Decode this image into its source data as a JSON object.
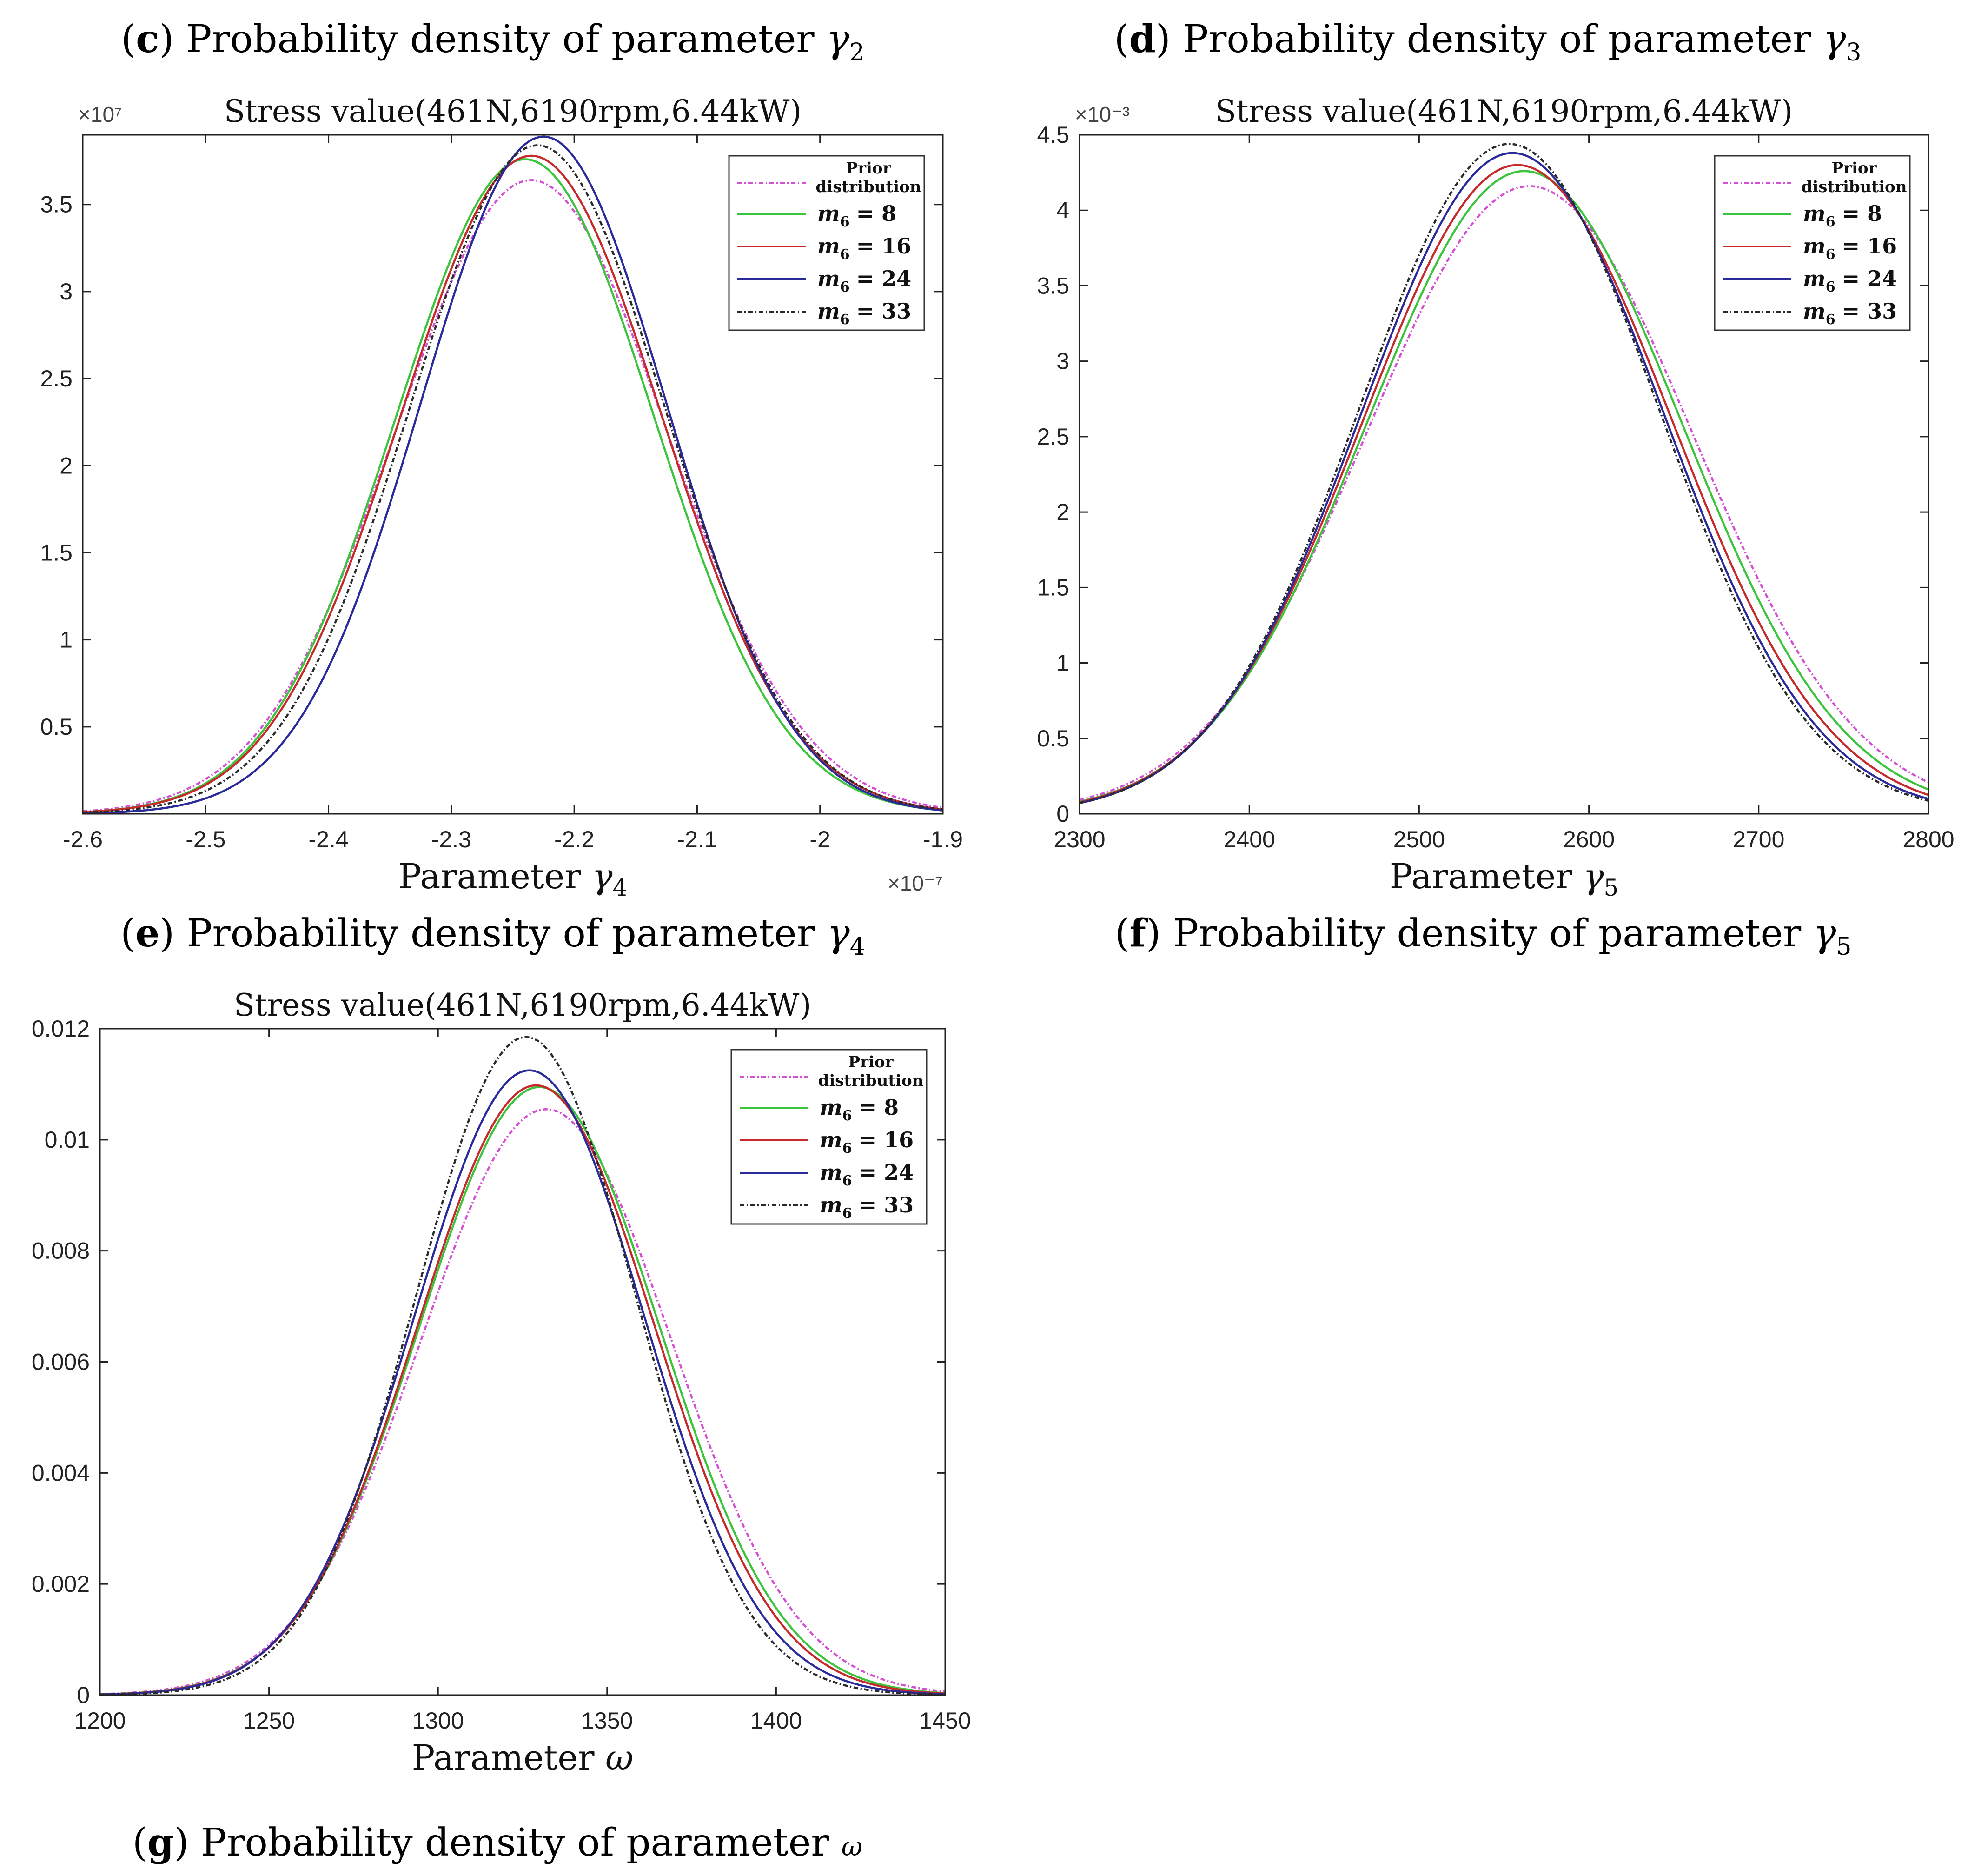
{
  "captions": {
    "c": {
      "letter": "c",
      "text": " Probability density of parameter ",
      "sym": "γ",
      "sub": "2"
    },
    "d": {
      "letter": "d",
      "text": " Probability density of parameter ",
      "sym": "γ",
      "sub": "3"
    },
    "e": {
      "letter": "e",
      "text": " Probability density of parameter ",
      "sym": "γ",
      "sub": "4"
    },
    "f": {
      "letter": "f",
      "text": " Probability density of parameter ",
      "sym": "γ",
      "sub": "5"
    },
    "g": {
      "letter": "g",
      "text": " Probability density of parameter ",
      "sym": "ω",
      "sub": ""
    }
  },
  "legend": {
    "prior_line1": "Prior",
    "prior_line2": "distribution",
    "m_label": "m",
    "m_sub": "6",
    "entries": [
      "= 8",
      "= 16",
      "= 24",
      "= 33"
    ]
  },
  "colors": {
    "prior": "#d44fd4",
    "m8": "#3cc43c",
    "m16": "#c62a2a",
    "m24": "#2a2a9a",
    "m33": "#2a2a2a"
  },
  "chart_data": [
    {
      "id": "e",
      "type": "line",
      "title": "Stress value(461N,6190rpm,6.44kW)",
      "xlabel": "Parameter γ",
      "xlabel_sub": "4",
      "ylabel": "",
      "xlim": [
        -2.6,
        -1.9
      ],
      "ylim": [
        0,
        3.9
      ],
      "xticks": [
        -2.6,
        -2.5,
        -2.4,
        -2.3,
        -2.2,
        -2.1,
        -2.0,
        -1.9
      ],
      "xtick_labels": [
        "-2.6",
        "-2.5",
        "-2.4",
        "-2.3",
        "-2.2",
        "-2.1",
        "-2",
        "-1.9"
      ],
      "yticks": [
        0.5,
        1,
        1.5,
        2,
        2.5,
        3,
        3.5
      ],
      "ytick_labels": [
        "0.5",
        "1",
        "1.5",
        "2",
        "2.5",
        "3",
        "3.5"
      ],
      "x_exponent": "×10⁻⁷",
      "y_exponent": "×10⁷",
      "series": [
        {
          "name": "Prior distribution",
          "peak_x": -2.235,
          "peak_y": 3.64,
          "sigma": 0.11,
          "style": "dashdot",
          "color_key": "prior"
        },
        {
          "name": "m6 = 8",
          "peak_x": -2.24,
          "peak_y": 3.76,
          "sigma": 0.105,
          "style": "solid",
          "color_key": "m8"
        },
        {
          "name": "m6 = 16",
          "peak_x": -2.235,
          "peak_y": 3.78,
          "sigma": 0.106,
          "style": "solid",
          "color_key": "m16"
        },
        {
          "name": "m6 = 24",
          "peak_x": -2.225,
          "peak_y": 3.89,
          "sigma": 0.1,
          "style": "solid",
          "color_key": "m24"
        },
        {
          "name": "m6 = 33",
          "peak_x": -2.23,
          "peak_y": 3.84,
          "sigma": 0.104,
          "style": "dashdot",
          "color_key": "m33"
        }
      ]
    },
    {
      "id": "f",
      "type": "line",
      "title": "Stress value(461N,6190rpm,6.44kW)",
      "xlabel": "Parameter γ",
      "xlabel_sub": "5",
      "ylabel": "",
      "xlim": [
        2300,
        2800
      ],
      "ylim": [
        0,
        4.5
      ],
      "xticks": [
        2300,
        2400,
        2500,
        2600,
        2700,
        2800
      ],
      "xtick_labels": [
        "2300",
        "2400",
        "2500",
        "2600",
        "2700",
        "2800"
      ],
      "yticks": [
        0,
        0.5,
        1,
        1.5,
        2,
        2.5,
        3,
        3.5,
        4,
        4.5
      ],
      "ytick_labels": [
        "0",
        "0.5",
        "1",
        "1.5",
        "2",
        "2.5",
        "3",
        "3.5",
        "4",
        "4.5"
      ],
      "x_exponent": "",
      "y_exponent": "×10⁻³",
      "series": [
        {
          "name": "Prior distribution",
          "peak_x": 2565,
          "peak_y": 4.16,
          "sigma": 96,
          "style": "dashdot",
          "color_key": "prior"
        },
        {
          "name": "m6 = 8",
          "peak_x": 2562,
          "peak_y": 4.26,
          "sigma": 93,
          "style": "solid",
          "color_key": "m8"
        },
        {
          "name": "m6 = 16",
          "peak_x": 2558,
          "peak_y": 4.3,
          "sigma": 91,
          "style": "solid",
          "color_key": "m16"
        },
        {
          "name": "m6 = 24",
          "peak_x": 2555,
          "peak_y": 4.38,
          "sigma": 89,
          "style": "solid",
          "color_key": "m24"
        },
        {
          "name": "m6 = 33",
          "peak_x": 2553,
          "peak_y": 4.44,
          "sigma": 88,
          "style": "dashdot",
          "color_key": "m33"
        }
      ]
    },
    {
      "id": "g",
      "type": "line",
      "title": "Stress value(461N,6190rpm,6.44kW)",
      "xlabel": "Parameter ω",
      "xlabel_sub": "",
      "ylabel": "",
      "xlim": [
        1200,
        1450
      ],
      "ylim": [
        0,
        0.012
      ],
      "xticks": [
        1200,
        1250,
        1300,
        1350,
        1400,
        1450
      ],
      "xtick_labels": [
        "1200",
        "1250",
        "1300",
        "1350",
        "1400",
        "1450"
      ],
      "yticks": [
        0,
        0.002,
        0.004,
        0.006,
        0.008,
        0.01,
        0.012
      ],
      "ytick_labels": [
        "0",
        "0.002",
        "0.004",
        "0.006",
        "0.008",
        "0.01",
        "0.012"
      ],
      "x_exponent": "",
      "y_exponent": "",
      "series": [
        {
          "name": "Prior distribution",
          "peak_x": 1332,
          "peak_y": 0.01055,
          "sigma": 37,
          "style": "dashdot",
          "color_key": "prior"
        },
        {
          "name": "m6 = 8",
          "peak_x": 1330,
          "peak_y": 0.01095,
          "sigma": 35.5,
          "style": "solid",
          "color_key": "m8"
        },
        {
          "name": "m6 = 16",
          "peak_x": 1329,
          "peak_y": 0.01098,
          "sigma": 35,
          "style": "solid",
          "color_key": "m16"
        },
        {
          "name": "m6 = 24",
          "peak_x": 1327,
          "peak_y": 0.01125,
          "sigma": 34,
          "style": "solid",
          "color_key": "m24"
        },
        {
          "name": "m6 = 33",
          "peak_x": 1326,
          "peak_y": 0.01185,
          "sigma": 32.5,
          "style": "dashdot",
          "color_key": "m33"
        }
      ]
    }
  ]
}
